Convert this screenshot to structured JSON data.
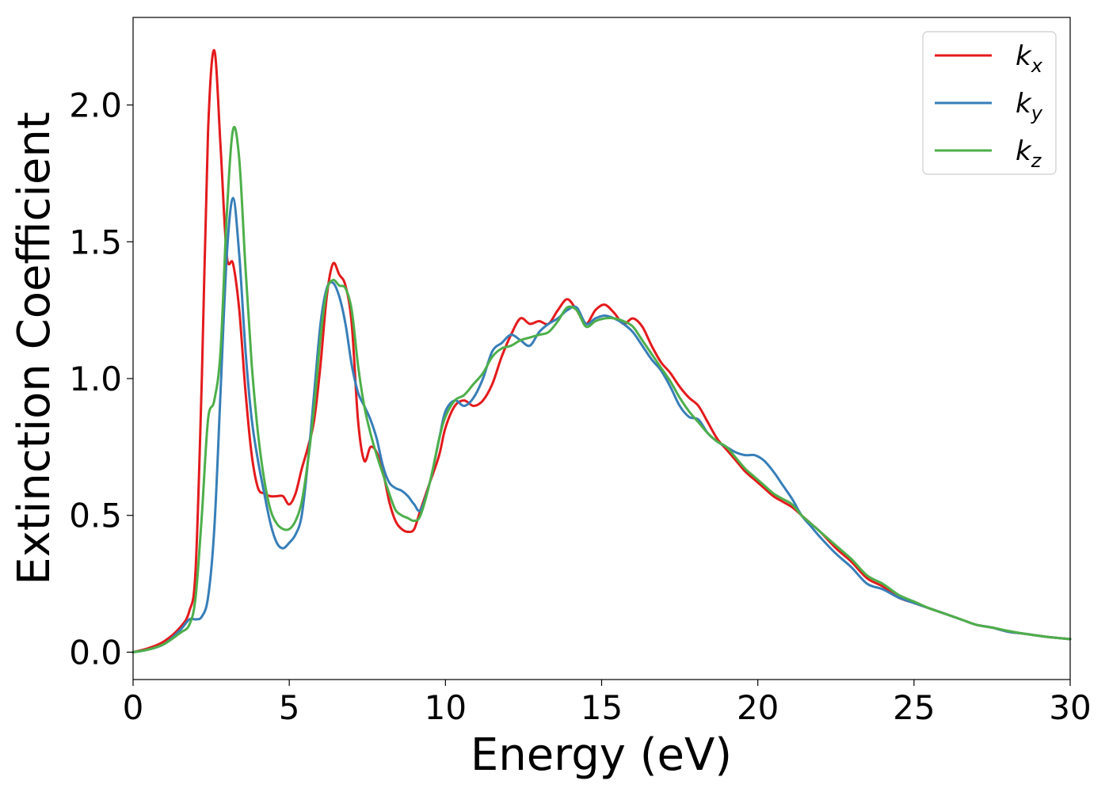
{
  "chart_data": {
    "type": "line",
    "title": "",
    "xlabel": "Energy (eV)",
    "ylabel": "Extinction Coefficient",
    "xlim": [
      0,
      30
    ],
    "ylim": [
      -0.1,
      2.32
    ],
    "xticks": [
      0,
      5,
      10,
      15,
      20,
      25,
      30
    ],
    "xtick_labels": [
      "0",
      "5",
      "10",
      "15",
      "20",
      "25",
      "30"
    ],
    "yticks": [
      0.0,
      0.5,
      1.0,
      1.5,
      2.0
    ],
    "ytick_labels": [
      "0.0",
      "0.5",
      "1.0",
      "1.5",
      "2.0"
    ],
    "grid": false,
    "legend_position": "top-right",
    "series": [
      {
        "name": "k",
        "subscript": "x",
        "color": "#e41a1c",
        "x": [
          0,
          0.5,
          1.0,
          1.5,
          1.8,
          2.0,
          2.2,
          2.4,
          2.6,
          2.8,
          3.0,
          3.2,
          3.4,
          3.6,
          3.8,
          4.0,
          4.2,
          4.4,
          4.6,
          4.8,
          5.0,
          5.2,
          5.4,
          5.6,
          5.8,
          6.0,
          6.2,
          6.4,
          6.6,
          6.8,
          7.0,
          7.2,
          7.4,
          7.6,
          7.8,
          8.0,
          8.2,
          8.4,
          8.6,
          8.8,
          9.0,
          9.2,
          9.5,
          9.8,
          10.0,
          10.3,
          10.6,
          10.9,
          11.2,
          11.5,
          11.8,
          12.1,
          12.4,
          12.7,
          13.0,
          13.3,
          13.6,
          13.9,
          14.2,
          14.5,
          14.8,
          15.1,
          15.4,
          15.7,
          16.0,
          16.3,
          16.6,
          16.9,
          17.2,
          17.5,
          17.8,
          18.1,
          18.4,
          18.7,
          19.0,
          19.3,
          19.6,
          19.9,
          20.2,
          20.5,
          20.8,
          21.1,
          21.4,
          21.7,
          22.0,
          22.5,
          23.0,
          23.5,
          24.0,
          24.5,
          25.0,
          25.5,
          26.0,
          26.5,
          27.0,
          27.5,
          28.0,
          28.5,
          29.0,
          29.5,
          30.0
        ],
        "y": [
          0.0,
          0.015,
          0.04,
          0.09,
          0.15,
          0.3,
          1.0,
          1.9,
          2.2,
          1.85,
          1.45,
          1.42,
          1.25,
          0.95,
          0.72,
          0.6,
          0.58,
          0.57,
          0.57,
          0.57,
          0.54,
          0.58,
          0.67,
          0.75,
          0.85,
          1.05,
          1.3,
          1.42,
          1.38,
          1.34,
          1.2,
          0.85,
          0.7,
          0.75,
          0.73,
          0.66,
          0.55,
          0.48,
          0.45,
          0.44,
          0.45,
          0.52,
          0.62,
          0.72,
          0.82,
          0.9,
          0.92,
          0.9,
          0.92,
          0.98,
          1.08,
          1.16,
          1.22,
          1.2,
          1.21,
          1.2,
          1.25,
          1.29,
          1.25,
          1.2,
          1.25,
          1.27,
          1.24,
          1.2,
          1.22,
          1.19,
          1.12,
          1.06,
          1.02,
          0.97,
          0.93,
          0.9,
          0.84,
          0.78,
          0.74,
          0.7,
          0.66,
          0.63,
          0.6,
          0.57,
          0.55,
          0.53,
          0.5,
          0.47,
          0.44,
          0.38,
          0.33,
          0.27,
          0.24,
          0.2,
          0.18,
          0.16,
          0.14,
          0.12,
          0.1,
          0.09,
          0.075,
          0.068,
          0.06,
          0.053,
          0.048
        ]
      },
      {
        "name": "k",
        "subscript": "y",
        "color": "#377eb8",
        "x": [
          0,
          0.5,
          1.0,
          1.5,
          1.8,
          2.0,
          2.2,
          2.4,
          2.6,
          2.8,
          3.0,
          3.2,
          3.4,
          3.6,
          3.8,
          4.0,
          4.2,
          4.4,
          4.6,
          4.8,
          5.0,
          5.2,
          5.4,
          5.6,
          5.8,
          6.0,
          6.2,
          6.4,
          6.6,
          6.8,
          7.0,
          7.2,
          7.4,
          7.6,
          7.8,
          8.0,
          8.2,
          8.4,
          8.6,
          8.8,
          9.0,
          9.2,
          9.5,
          9.8,
          10.0,
          10.3,
          10.6,
          10.9,
          11.2,
          11.5,
          11.8,
          12.1,
          12.4,
          12.7,
          13.0,
          13.3,
          13.6,
          13.9,
          14.2,
          14.5,
          14.8,
          15.1,
          15.4,
          15.7,
          16.0,
          16.3,
          16.6,
          16.9,
          17.2,
          17.5,
          17.8,
          18.1,
          18.4,
          18.7,
          19.0,
          19.3,
          19.6,
          19.9,
          20.2,
          20.5,
          20.8,
          21.1,
          21.4,
          21.7,
          22.0,
          22.5,
          23.0,
          23.5,
          24.0,
          24.5,
          25.0,
          25.5,
          26.0,
          26.5,
          27.0,
          27.5,
          28.0,
          28.5,
          29.0,
          29.5,
          30.0
        ],
        "y": [
          0.0,
          0.01,
          0.03,
          0.08,
          0.12,
          0.12,
          0.13,
          0.2,
          0.45,
          0.95,
          1.45,
          1.66,
          1.45,
          1.1,
          0.85,
          0.7,
          0.58,
          0.47,
          0.4,
          0.38,
          0.4,
          0.43,
          0.5,
          0.7,
          0.95,
          1.2,
          1.33,
          1.35,
          1.3,
          1.2,
          1.05,
          0.95,
          0.9,
          0.85,
          0.78,
          0.68,
          0.62,
          0.6,
          0.59,
          0.57,
          0.54,
          0.52,
          0.62,
          0.78,
          0.88,
          0.92,
          0.9,
          0.93,
          1.0,
          1.1,
          1.13,
          1.16,
          1.14,
          1.12,
          1.17,
          1.2,
          1.22,
          1.25,
          1.26,
          1.2,
          1.22,
          1.23,
          1.22,
          1.2,
          1.17,
          1.12,
          1.07,
          1.03,
          0.97,
          0.9,
          0.86,
          0.85,
          0.8,
          0.77,
          0.75,
          0.73,
          0.72,
          0.72,
          0.7,
          0.66,
          0.61,
          0.56,
          0.5,
          0.46,
          0.42,
          0.36,
          0.31,
          0.25,
          0.23,
          0.2,
          0.18,
          0.16,
          0.14,
          0.12,
          0.1,
          0.09,
          0.075,
          0.068,
          0.06,
          0.053,
          0.048
        ]
      },
      {
        "name": "k",
        "subscript": "z",
        "color": "#4daf4a",
        "x": [
          0,
          0.5,
          1.0,
          1.5,
          1.8,
          2.0,
          2.2,
          2.4,
          2.6,
          2.8,
          3.0,
          3.2,
          3.4,
          3.6,
          3.8,
          4.0,
          4.2,
          4.4,
          4.6,
          4.8,
          5.0,
          5.2,
          5.4,
          5.6,
          5.8,
          6.0,
          6.2,
          6.4,
          6.6,
          6.8,
          7.0,
          7.2,
          7.4,
          7.6,
          7.8,
          8.0,
          8.2,
          8.4,
          8.6,
          8.8,
          9.0,
          9.2,
          9.5,
          9.8,
          10.0,
          10.3,
          10.6,
          10.9,
          11.2,
          11.5,
          11.8,
          12.1,
          12.4,
          12.7,
          13.0,
          13.3,
          13.6,
          13.9,
          14.2,
          14.5,
          14.8,
          15.1,
          15.4,
          15.7,
          16.0,
          16.3,
          16.6,
          16.9,
          17.2,
          17.5,
          17.8,
          18.1,
          18.4,
          18.7,
          19.0,
          19.3,
          19.6,
          19.9,
          20.2,
          20.5,
          20.8,
          21.1,
          21.4,
          21.7,
          22.0,
          22.5,
          23.0,
          23.5,
          24.0,
          24.5,
          25.0,
          25.5,
          26.0,
          26.5,
          27.0,
          27.5,
          28.0,
          28.5,
          29.0,
          29.5,
          30.0
        ],
        "y": [
          0.0,
          0.01,
          0.03,
          0.07,
          0.1,
          0.2,
          0.5,
          0.85,
          0.92,
          1.1,
          1.6,
          1.91,
          1.8,
          1.4,
          1.05,
          0.8,
          0.63,
          0.52,
          0.47,
          0.45,
          0.45,
          0.48,
          0.55,
          0.7,
          0.9,
          1.15,
          1.32,
          1.36,
          1.34,
          1.33,
          1.25,
          1.05,
          0.9,
          0.8,
          0.72,
          0.65,
          0.58,
          0.52,
          0.5,
          0.49,
          0.48,
          0.5,
          0.62,
          0.78,
          0.86,
          0.92,
          0.94,
          0.98,
          1.02,
          1.08,
          1.11,
          1.12,
          1.14,
          1.15,
          1.16,
          1.17,
          1.21,
          1.26,
          1.25,
          1.19,
          1.21,
          1.22,
          1.22,
          1.21,
          1.19,
          1.14,
          1.09,
          1.04,
          0.99,
          0.93,
          0.88,
          0.84,
          0.8,
          0.77,
          0.75,
          0.71,
          0.67,
          0.64,
          0.61,
          0.58,
          0.56,
          0.54,
          0.5,
          0.47,
          0.44,
          0.39,
          0.34,
          0.28,
          0.25,
          0.21,
          0.185,
          0.16,
          0.14,
          0.12,
          0.1,
          0.09,
          0.078,
          0.068,
          0.06,
          0.053,
          0.048
        ]
      }
    ]
  }
}
